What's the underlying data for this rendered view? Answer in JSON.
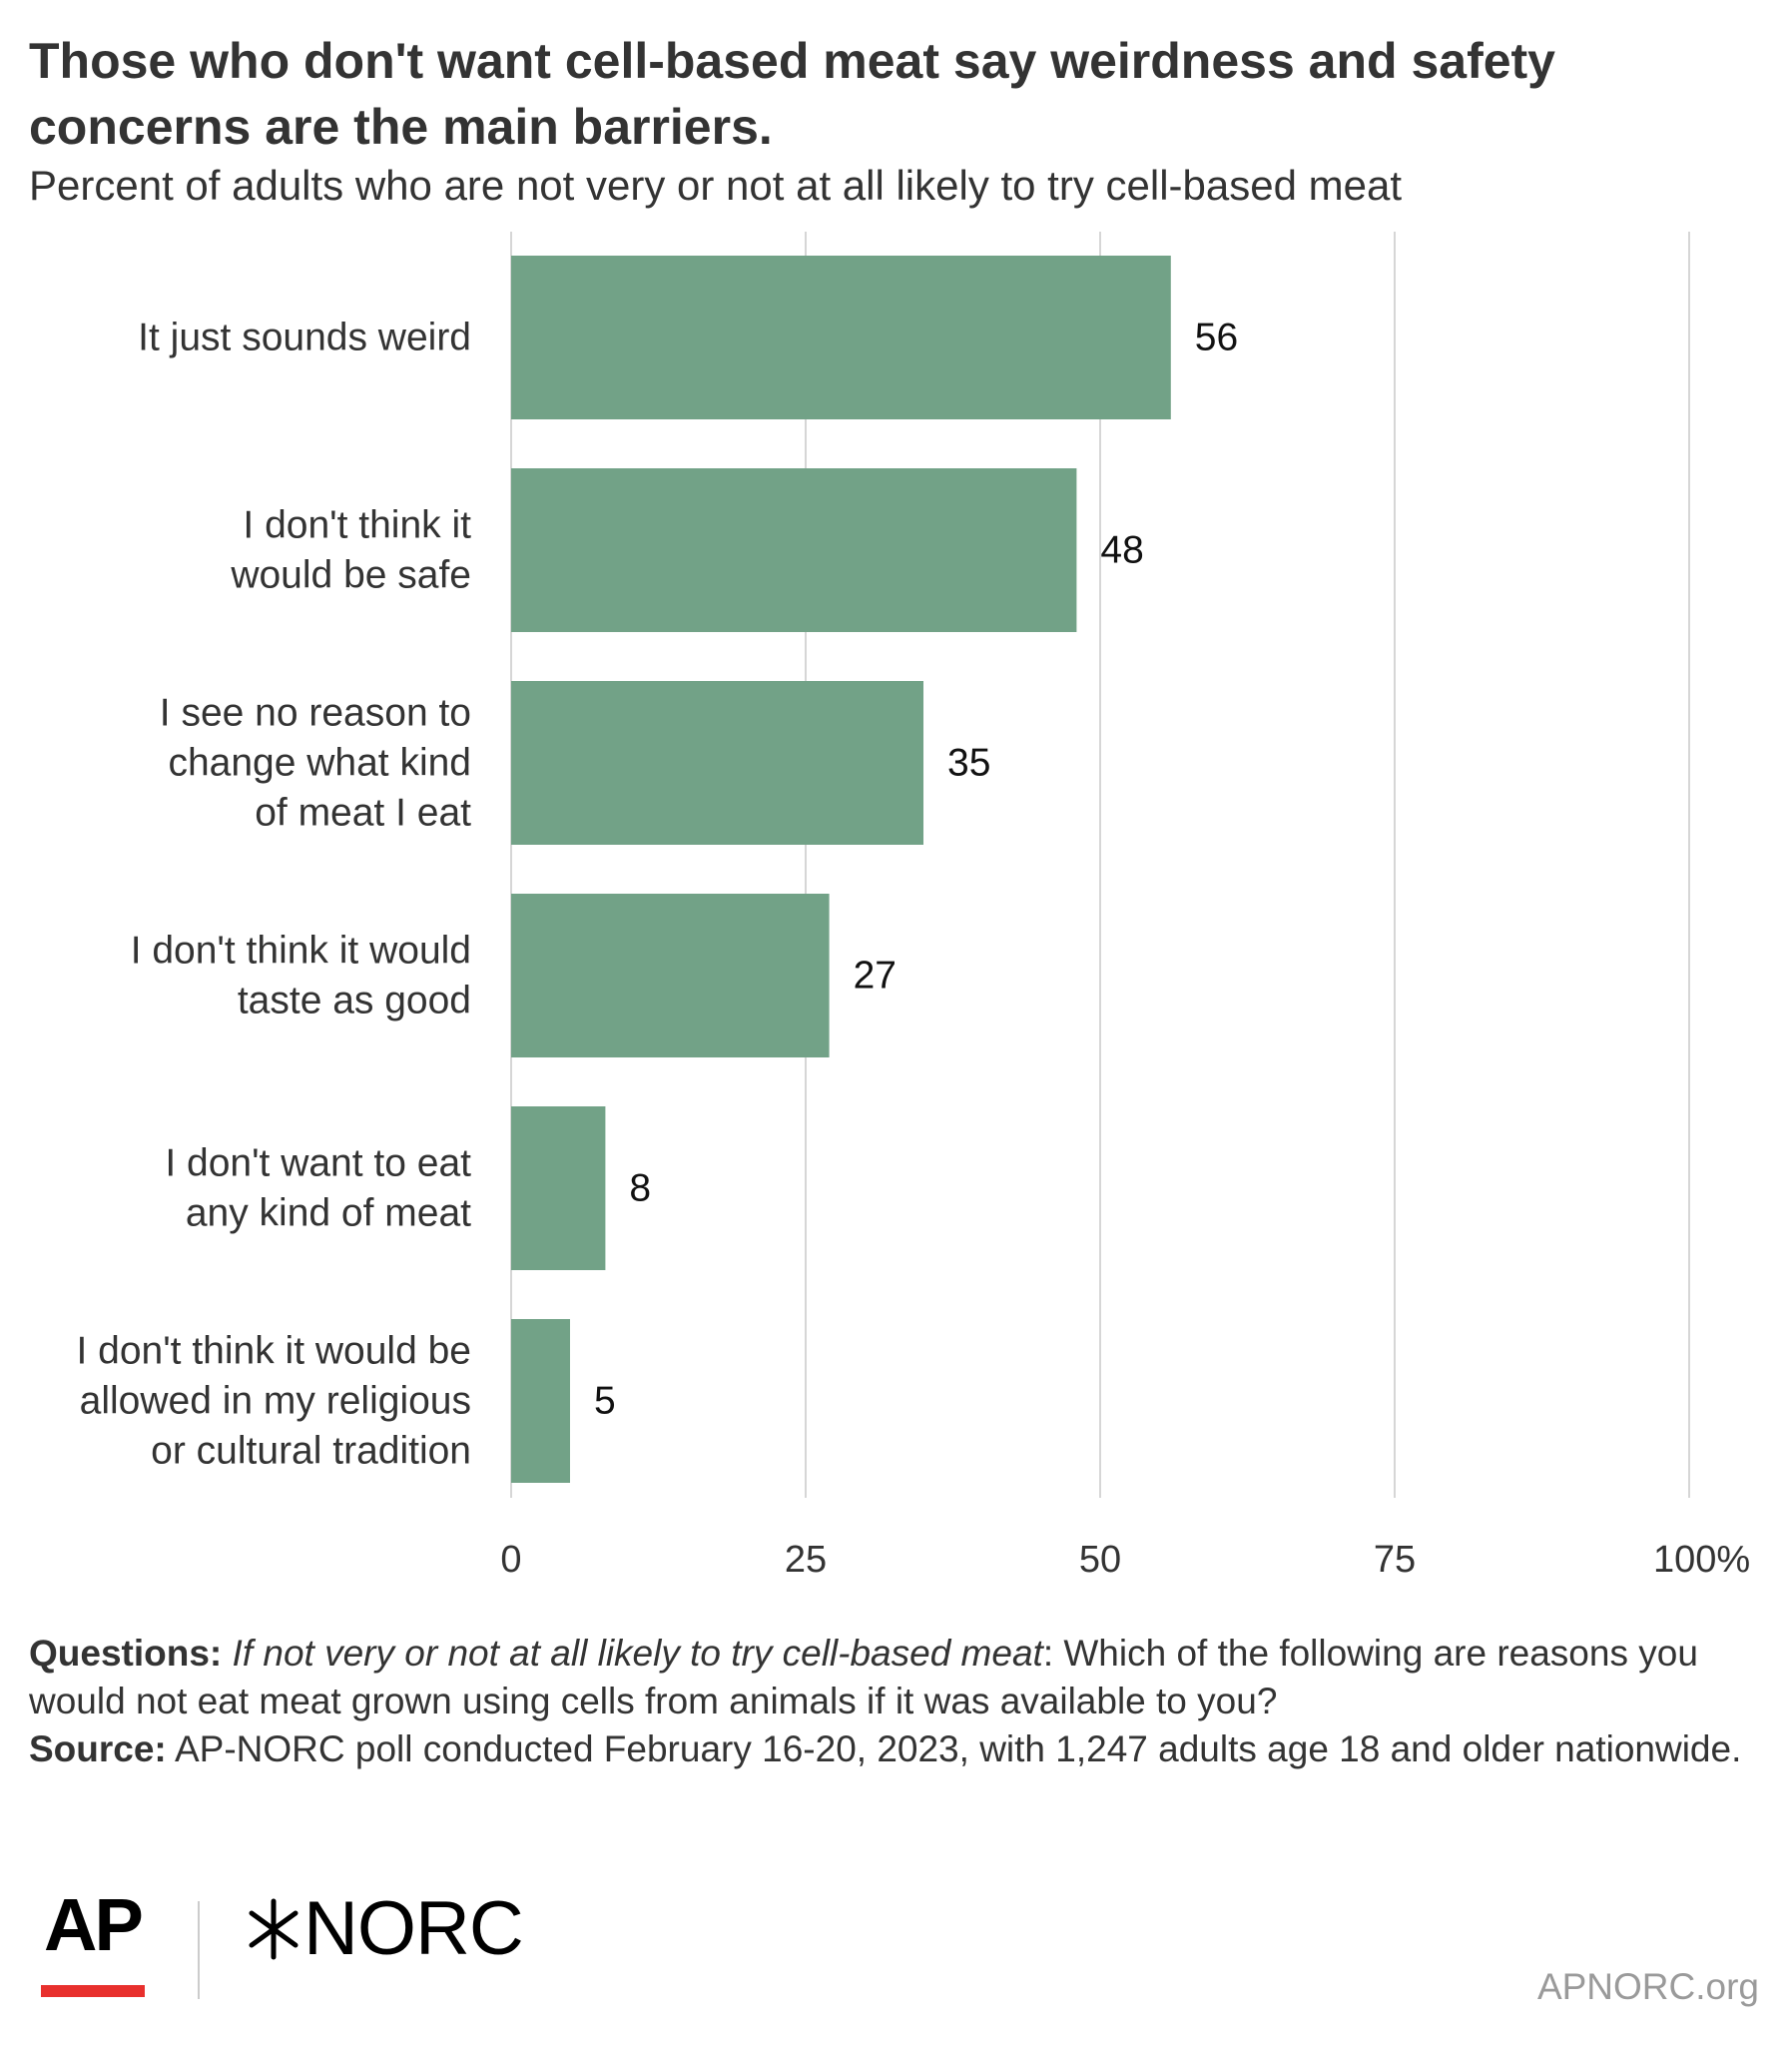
{
  "header": {
    "title": "Those who don't want cell-based meat say weirdness and safety concerns are the main barriers.",
    "subtitle": "Percent of adults who are not very or not at all likely to try cell-based meat"
  },
  "chart_data": {
    "type": "bar",
    "orientation": "horizontal",
    "categories": [
      [
        "It just sounds weird"
      ],
      [
        "I don't think it",
        "would be safe"
      ],
      [
        "I see no reason to",
        "change what kind",
        "of meat I eat"
      ],
      [
        "I don't think it would",
        "taste as good"
      ],
      [
        "I don't want to eat",
        "any kind of meat"
      ],
      [
        "I don't think it would be",
        "allowed in my religious",
        "or cultural tradition"
      ]
    ],
    "values": [
      56,
      48,
      35,
      27,
      8,
      5
    ],
    "xlim": [
      0,
      100
    ],
    "ticks": [
      "0",
      "25",
      "50",
      "75",
      "100%"
    ],
    "tick_values": [
      0,
      25,
      50,
      75,
      100
    ],
    "grid": true,
    "bar_color": "#72a287"
  },
  "notes": {
    "questions_label": "Questions:",
    "questions_italic": "If not very or not at all likely to try cell-based meat",
    "questions_text": ": Which of the following are reasons you would not eat meat grown using cells from animals if it was available to you?",
    "source_label": "Source:",
    "source_text": " AP-NORC poll conducted February 16-20, 2023, with 1,247 adults age 18 and older nationwide."
  },
  "footer": {
    "logo_ap": "AP",
    "logo_norc": "NORC",
    "website": "APNORC.org"
  }
}
